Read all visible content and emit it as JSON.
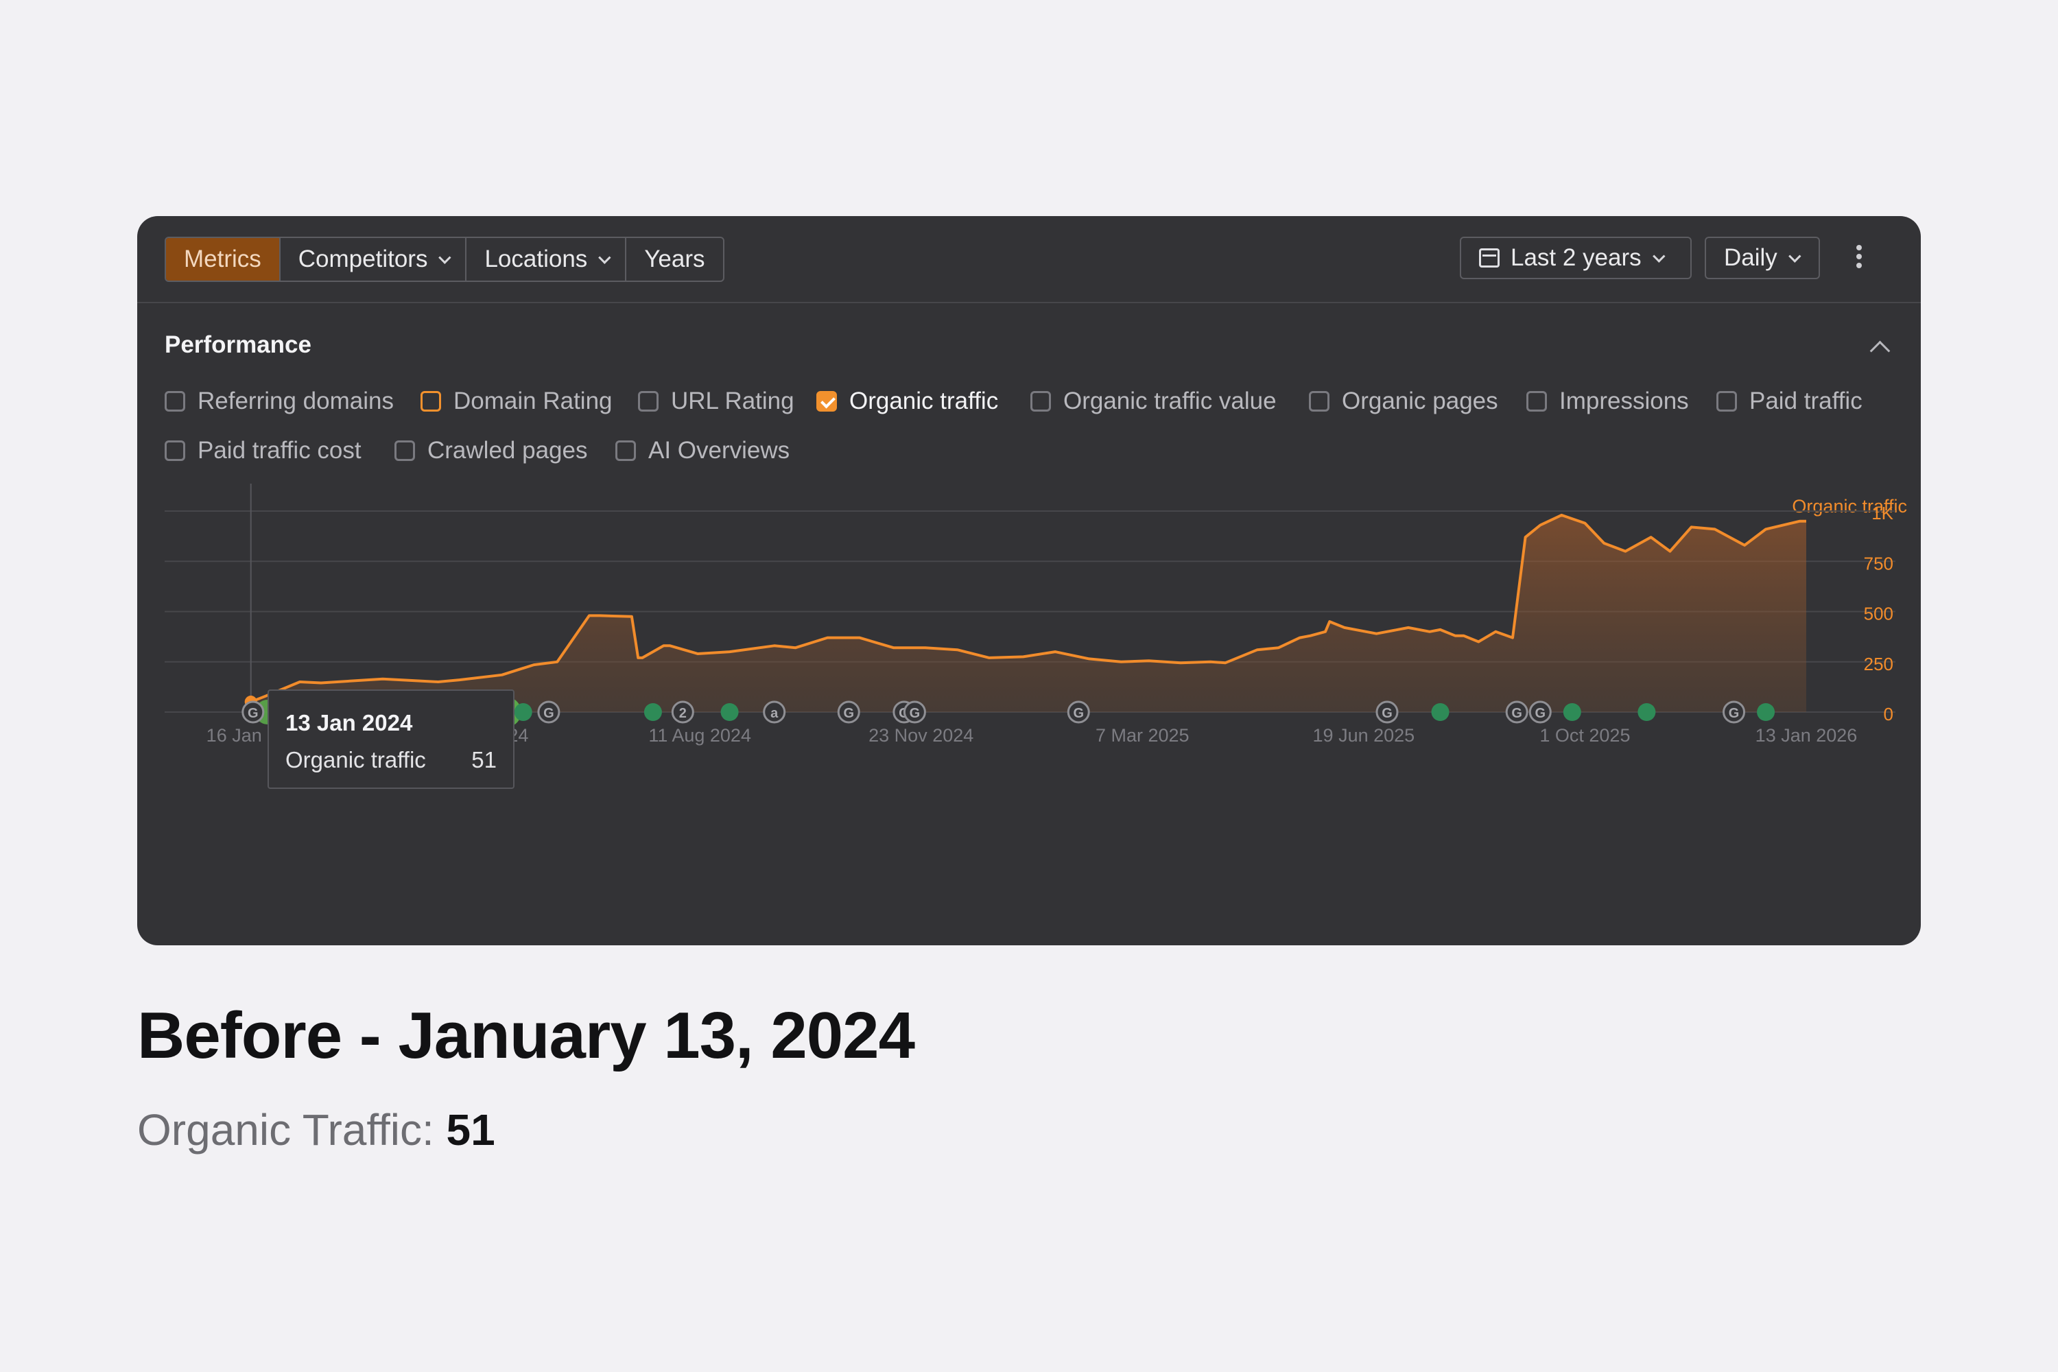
{
  "toolbar": {
    "tabs": [
      {
        "label": "Metrics",
        "active": true,
        "dropdown": false
      },
      {
        "label": "Competitors",
        "active": false,
        "dropdown": true
      },
      {
        "label": "Locations",
        "active": false,
        "dropdown": true
      },
      {
        "label": "Years",
        "active": false,
        "dropdown": false
      }
    ],
    "range_label": "Last 2 years",
    "interval_label": "Daily"
  },
  "performance": {
    "title": "Performance",
    "metrics": [
      {
        "label": "Referring domains",
        "state": "unchecked"
      },
      {
        "label": "Domain Rating",
        "state": "outlined"
      },
      {
        "label": "URL Rating",
        "state": "unchecked"
      },
      {
        "label": "Organic traffic",
        "state": "checked"
      },
      {
        "label": "Organic traffic value",
        "state": "unchecked"
      },
      {
        "label": "Organic pages",
        "state": "unchecked"
      },
      {
        "label": "Impressions",
        "state": "unchecked"
      },
      {
        "label": "Paid traffic",
        "state": "unchecked"
      },
      {
        "label": "Paid traffic cost",
        "state": "unchecked"
      },
      {
        "label": "Crawled pages",
        "state": "unchecked"
      },
      {
        "label": "AI Overviews",
        "state": "unchecked"
      }
    ]
  },
  "tooltip": {
    "date": "13 Jan 2024",
    "label": "Organic traffic",
    "value": "51"
  },
  "colors": {
    "accent": "#f28c2b",
    "panel": "#333336",
    "event_green": "#2e8b57"
  },
  "chart_data": {
    "type": "area",
    "series": [
      {
        "name": "Organic traffic",
        "x": [
          "2024-01-13",
          "2024-01-20",
          "2024-02-05",
          "2024-02-15",
          "2024-03-15",
          "2024-04-10",
          "2024-04-20",
          "2024-05-10",
          "2024-05-25",
          "2024-06-05",
          "2024-06-20",
          "2024-06-25",
          "2024-07-10",
          "2024-07-13",
          "2024-07-15",
          "2024-07-25",
          "2024-07-28",
          "2024-08-10",
          "2024-08-25",
          "2024-09-15",
          "2024-09-25",
          "2024-10-10",
          "2024-10-25",
          "2024-11-10",
          "2024-11-25",
          "2024-12-10",
          "2024-12-25",
          "2025-01-10",
          "2025-01-25",
          "2025-02-10",
          "2025-02-25",
          "2025-03-10",
          "2025-03-25",
          "2025-04-08",
          "2025-04-15",
          "2025-04-30",
          "2025-05-10",
          "2025-05-20",
          "2025-05-25",
          "2025-06-01",
          "2025-06-03",
          "2025-06-10",
          "2025-06-25",
          "2025-07-10",
          "2025-07-20",
          "2025-07-25",
          "2025-08-01",
          "2025-08-05",
          "2025-08-12",
          "2025-08-20",
          "2025-08-28",
          "2025-09-03",
          "2025-09-10",
          "2025-09-20",
          "2025-10-01",
          "2025-10-10",
          "2025-10-20",
          "2025-11-01",
          "2025-11-10",
          "2025-11-20",
          "2025-12-01",
          "2025-12-15",
          "2025-12-25",
          "2026-01-10",
          "2026-01-13"
        ],
        "values": [
          51,
          80,
          150,
          145,
          165,
          150,
          160,
          185,
          235,
          250,
          480,
          480,
          475,
          270,
          270,
          330,
          330,
          290,
          300,
          330,
          320,
          370,
          370,
          320,
          320,
          310,
          270,
          275,
          300,
          265,
          250,
          255,
          245,
          250,
          245,
          310,
          320,
          370,
          380,
          400,
          450,
          420,
          390,
          420,
          400,
          410,
          380,
          380,
          350,
          400,
          370,
          870,
          930,
          980,
          940,
          840,
          800,
          870,
          800,
          920,
          910,
          830,
          910,
          950,
          950
        ]
      }
    ],
    "x_ticks": [
      "16 Jan 2024",
      "29 Apr 2024",
      "11 Aug 2024",
      "23 Nov 2024",
      "7 Mar 2025",
      "19 Jun 2025",
      "1 Oct 2025",
      "13 Jan 2026"
    ],
    "y_ticks": [
      "0",
      "250",
      "500",
      "750",
      "1K"
    ],
    "ylim": [
      0,
      1000
    ],
    "ylabel": "Organic traffic",
    "grid": true,
    "event_markers": [
      {
        "date": "2024-01-14",
        "kind": "G"
      },
      {
        "date": "2024-02-10",
        "kind": "dot"
      },
      {
        "date": "2024-03-05",
        "kind": "dot"
      },
      {
        "date": "2024-03-12",
        "kind": "G"
      },
      {
        "date": "2024-03-20",
        "kind": "dot"
      },
      {
        "date": "2024-04-05",
        "kind": "dot"
      },
      {
        "date": "2024-04-20",
        "kind": "dot"
      },
      {
        "date": "2024-05-01",
        "kind": "dot"
      },
      {
        "date": "2024-05-20",
        "kind": "dot"
      },
      {
        "date": "2024-06-01",
        "kind": "G"
      },
      {
        "date": "2024-07-20",
        "kind": "dot"
      },
      {
        "date": "2024-08-03",
        "kind": "2"
      },
      {
        "date": "2024-08-25",
        "kind": "dot"
      },
      {
        "date": "2024-09-15",
        "kind": "a"
      },
      {
        "date": "2024-10-20",
        "kind": "G"
      },
      {
        "date": "2024-11-15",
        "kind": "G"
      },
      {
        "date": "2024-11-20",
        "kind": "G"
      },
      {
        "date": "2025-02-05",
        "kind": "G"
      },
      {
        "date": "2025-06-30",
        "kind": "G"
      },
      {
        "date": "2025-07-25",
        "kind": "dot"
      },
      {
        "date": "2025-08-30",
        "kind": "G"
      },
      {
        "date": "2025-09-10",
        "kind": "G"
      },
      {
        "date": "2025-09-25",
        "kind": "dot"
      },
      {
        "date": "2025-10-30",
        "kind": "dot"
      },
      {
        "date": "2025-12-10",
        "kind": "G"
      },
      {
        "date": "2025-12-25",
        "kind": "dot"
      }
    ]
  },
  "caption": {
    "title": "Before - January 13, 2024",
    "sub_label": "Organic Traffic:",
    "sub_value": "51"
  }
}
